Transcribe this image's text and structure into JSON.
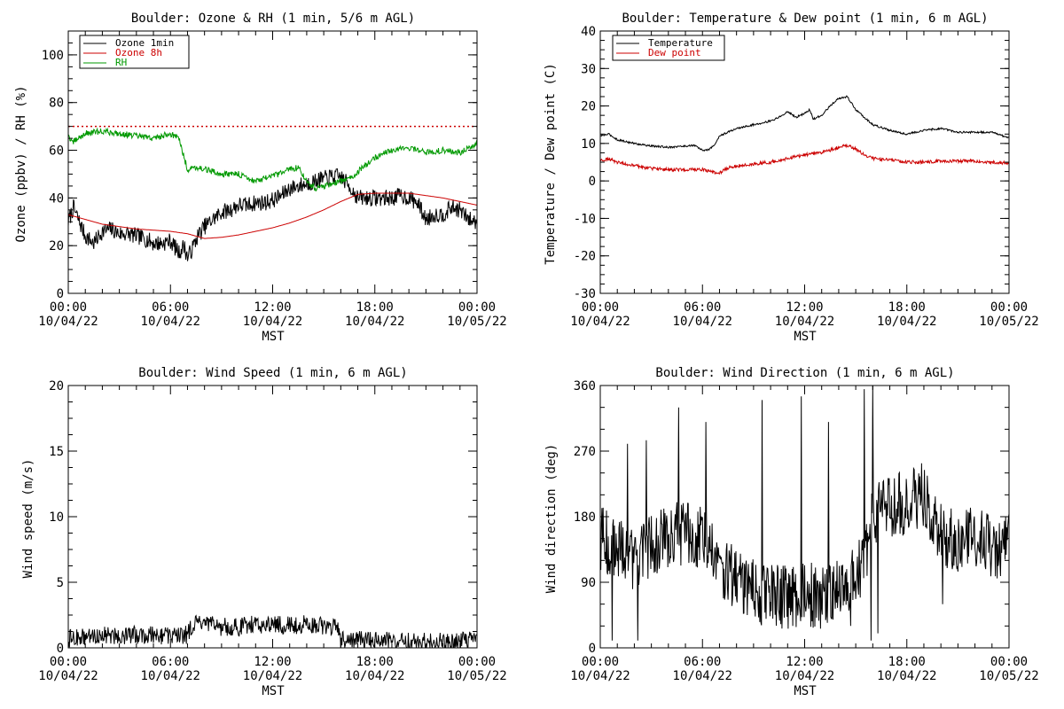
{
  "chart_data": [
    {
      "type": "line",
      "title": "Boulder: Ozone & RH (1 min, 5/6 m AGL)",
      "xlabel": "MST",
      "ylabel": "Ozone (ppbv) / RH (%)",
      "xlim": [
        0,
        24
      ],
      "ylim": [
        0,
        110
      ],
      "x_ticks": [
        {
          "hour": 0,
          "time": "00:00",
          "date": "10/04/22"
        },
        {
          "hour": 6,
          "time": "06:00",
          "date": "10/04/22"
        },
        {
          "hour": 12,
          "time": "12:00",
          "date": "10/04/22"
        },
        {
          "hour": 18,
          "time": "18:00",
          "date": "10/04/22"
        },
        {
          "hour": 24,
          "time": "00:00",
          "date": "10/05/22"
        }
      ],
      "y_ticks": [
        0,
        20,
        40,
        60,
        80,
        100
      ],
      "legend_position": "top-left",
      "reference_line": {
        "y": 70,
        "color": "#cc0000",
        "style": "dotted"
      },
      "series": [
        {
          "name": "Ozone 1min",
          "color": "#000000",
          "noise": 3.5,
          "x": [
            0,
            0.3,
            1,
            1.5,
            2,
            2.5,
            3,
            3.5,
            4,
            4.5,
            5,
            5.5,
            6,
            6.5,
            6.8,
            7,
            7.3,
            7.6,
            8,
            8.5,
            9,
            9.5,
            10,
            10.5,
            11,
            11.5,
            12,
            12.5,
            13,
            13.5,
            14,
            14.5,
            15,
            15.5,
            16,
            16.5,
            17,
            17.5,
            18,
            18.5,
            19,
            19.5,
            20,
            20.5,
            21,
            21.5,
            22,
            22.5,
            23,
            23.5,
            24
          ],
          "y": [
            30,
            36,
            24,
            21,
            26,
            27,
            25,
            25,
            24,
            23,
            21,
            21,
            22,
            17,
            20,
            15,
            19,
            24,
            28,
            31,
            34,
            35,
            37,
            37,
            38,
            38,
            39,
            41,
            44,
            45,
            46,
            47,
            48,
            49,
            49,
            45,
            40,
            40,
            40,
            40,
            40,
            41,
            40,
            38,
            31,
            33,
            33,
            36,
            35,
            31,
            30
          ]
        },
        {
          "name": "Ozone 8h",
          "color": "#cc0000",
          "noise": 0,
          "x": [
            0,
            1,
            2,
            3,
            4,
            5,
            6,
            7,
            8,
            9,
            10,
            11,
            12,
            13,
            14,
            15,
            16,
            17,
            18,
            19,
            20,
            21,
            22,
            23,
            24
          ],
          "y": [
            33,
            31,
            29,
            28,
            27,
            26.5,
            26,
            25,
            23,
            23.5,
            24.5,
            26,
            27.5,
            29.5,
            32,
            35,
            38.5,
            41.5,
            42,
            42,
            42,
            41,
            40,
            38.5,
            37
          ]
        },
        {
          "name": "RH",
          "color": "#009900",
          "noise": 1.3,
          "x": [
            0,
            0.2,
            1,
            2,
            3,
            4,
            5,
            6,
            6.5,
            6.8,
            7,
            7.5,
            8,
            9,
            10,
            11,
            12,
            13,
            13.5,
            14,
            14.5,
            15,
            16,
            16.5,
            17,
            17.5,
            18,
            19,
            20,
            21,
            22,
            23,
            24
          ],
          "y": [
            67,
            63,
            67,
            68,
            67,
            66,
            65,
            67,
            65,
            57,
            52,
            53,
            52,
            50,
            50,
            47,
            49,
            52,
            53,
            47,
            44,
            45,
            47,
            48,
            51,
            54,
            57,
            60,
            61,
            59,
            60,
            59,
            63
          ]
        }
      ]
    },
    {
      "type": "line",
      "title": "Boulder: Temperature & Dew point (1 min, 6 m AGL)",
      "xlabel": "MST",
      "ylabel": "Temperature / Dew point (C)",
      "xlim": [
        0,
        24
      ],
      "ylim": [
        -30,
        40
      ],
      "x_ticks": [
        {
          "hour": 0,
          "time": "00:00",
          "date": "10/04/22"
        },
        {
          "hour": 6,
          "time": "06:00",
          "date": "10/04/22"
        },
        {
          "hour": 12,
          "time": "12:00",
          "date": "10/04/22"
        },
        {
          "hour": 18,
          "time": "18:00",
          "date": "10/04/22"
        },
        {
          "hour": 24,
          "time": "00:00",
          "date": "10/05/22"
        }
      ],
      "y_ticks": [
        -30,
        -20,
        -10,
        0,
        10,
        20,
        30,
        40
      ],
      "legend_position": "top-left",
      "series": [
        {
          "name": "Temperature",
          "color": "#000000",
          "noise": 0.25,
          "x": [
            0,
            0.5,
            1,
            2,
            3,
            4,
            5,
            5.5,
            6,
            6.3,
            6.7,
            7,
            7.5,
            8,
            9,
            10,
            10.5,
            11,
            11.5,
            12,
            12.3,
            12.5,
            13,
            13.5,
            14,
            14.5,
            15,
            15.5,
            16,
            17,
            18,
            19,
            20,
            21,
            22,
            23,
            24
          ],
          "y": [
            12,
            12.5,
            11,
            10,
            9.3,
            9,
            9.3,
            9.5,
            8.2,
            8.2,
            9.5,
            12,
            13,
            14,
            15,
            16,
            17,
            18.5,
            17,
            18,
            19,
            16.5,
            17.5,
            20,
            22,
            22.5,
            19,
            17,
            15,
            13.5,
            12.5,
            13.5,
            14,
            13,
            13,
            13,
            11.5
          ]
        },
        {
          "name": "Dew point",
          "color": "#cc0000",
          "noise": 0.45,
          "x": [
            0,
            0.5,
            1,
            2,
            3,
            4,
            5,
            6,
            6.5,
            7,
            7.5,
            8,
            9,
            10,
            11,
            12,
            13,
            14,
            14.5,
            15,
            15.5,
            16,
            17,
            18,
            19,
            20,
            21,
            22,
            23,
            24
          ],
          "y": [
            5.5,
            6,
            5,
            4,
            3.3,
            3,
            3,
            3,
            2.5,
            2,
            3.5,
            4,
            4.5,
            5,
            6,
            7,
            7.5,
            9,
            9.5,
            8.5,
            7,
            6,
            5.5,
            5,
            5,
            5.3,
            5.3,
            5.3,
            5,
            4.8
          ]
        }
      ]
    },
    {
      "type": "line",
      "title": "Boulder: Wind Speed (1 min, 6 m AGL)",
      "xlabel": "MST",
      "ylabel": "Wind speed (m/s)",
      "xlim": [
        0,
        24
      ],
      "ylim": [
        0,
        20
      ],
      "x_ticks": [
        {
          "hour": 0,
          "time": "00:00",
          "date": "10/04/22"
        },
        {
          "hour": 6,
          "time": "06:00",
          "date": "10/04/22"
        },
        {
          "hour": 12,
          "time": "12:00",
          "date": "10/04/22"
        },
        {
          "hour": 18,
          "time": "18:00",
          "date": "10/04/22"
        },
        {
          "hour": 24,
          "time": "00:00",
          "date": "10/05/22"
        }
      ],
      "y_ticks": [
        0,
        5,
        10,
        15,
        20
      ],
      "series": [
        {
          "color": "#000000",
          "noise": 0.7,
          "clip_min": 0,
          "x": [
            0,
            1,
            2,
            3,
            4,
            5,
            6,
            7,
            7.3,
            8,
            9,
            10,
            11,
            12,
            13,
            14,
            15,
            15.8,
            16,
            16.5,
            17,
            18,
            19,
            20,
            21,
            22,
            23,
            24
          ],
          "y": [
            0.7,
            0.8,
            1,
            0.9,
            1,
            1,
            0.9,
            1,
            1.8,
            1.8,
            1.6,
            1.6,
            1.8,
            1.8,
            1.7,
            1.8,
            1.7,
            1.5,
            0.6,
            0.5,
            0.6,
            0.6,
            0.5,
            0.5,
            0.5,
            0.5,
            0.5,
            0.6
          ]
        }
      ]
    },
    {
      "type": "line",
      "title": "Boulder: Wind Direction (1 min, 6 m AGL)",
      "xlabel": "MST",
      "ylabel": "Wind direction (deg)",
      "xlim": [
        0,
        24
      ],
      "ylim": [
        0,
        360
      ],
      "x_ticks": [
        {
          "hour": 0,
          "time": "00:00",
          "date": "10/04/22"
        },
        {
          "hour": 6,
          "time": "06:00",
          "date": "10/04/22"
        },
        {
          "hour": 12,
          "time": "12:00",
          "date": "10/04/22"
        },
        {
          "hour": 18,
          "time": "18:00",
          "date": "10/04/22"
        },
        {
          "hour": 24,
          "time": "00:00",
          "date": "10/05/22"
        }
      ],
      "y_ticks": [
        0,
        90,
        180,
        270,
        360
      ],
      "series": [
        {
          "color": "#000000",
          "noise": 45,
          "clip_min": 0,
          "clip_max": 360,
          "x": [
            0,
            1,
            2,
            3,
            4,
            5,
            6,
            6.5,
            7,
            7.5,
            8,
            9,
            10,
            11,
            12,
            13,
            14,
            15,
            15.5,
            16,
            16.5,
            17,
            18,
            19,
            20,
            21,
            22,
            23,
            24
          ],
          "y": [
            150,
            140,
            120,
            140,
            150,
            160,
            150,
            150,
            110,
            100,
            95,
            80,
            70,
            70,
            75,
            70,
            80,
            100,
            120,
            180,
            200,
            190,
            200,
            210,
            160,
            140,
            150,
            140,
            140
          ],
          "spikes": [
            {
              "x": 0.7,
              "y": 10
            },
            {
              "x": 1.6,
              "y": 280
            },
            {
              "x": 2.2,
              "y": 10
            },
            {
              "x": 2.7,
              "y": 285
            },
            {
              "x": 4.6,
              "y": 330
            },
            {
              "x": 6.2,
              "y": 310
            },
            {
              "x": 9.5,
              "y": 340
            },
            {
              "x": 11.8,
              "y": 345
            },
            {
              "x": 13.4,
              "y": 310
            },
            {
              "x": 14.7,
              "y": 30
            },
            {
              "x": 15.5,
              "y": 355
            },
            {
              "x": 15.9,
              "y": 10
            },
            {
              "x": 16.0,
              "y": 360
            },
            {
              "x": 16.3,
              "y": 20
            },
            {
              "x": 20.1,
              "y": 60
            }
          ]
        }
      ]
    }
  ]
}
